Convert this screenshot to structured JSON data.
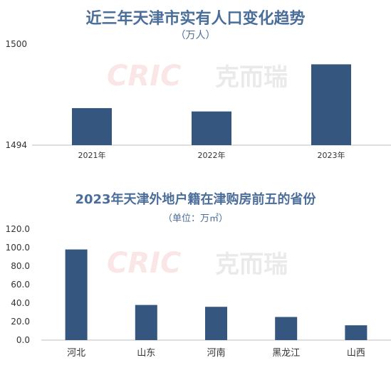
{
  "chart_data": [
    {
      "type": "bar",
      "title": "近三年天津市实有人口变化趋势",
      "subtitle": "（万人）",
      "categories": [
        "2021年",
        "2022年",
        "2023年"
      ],
      "values": [
        1496.2,
        1496.0,
        1498.8
      ],
      "ylim": [
        1494,
        1500
      ],
      "yticks": [
        "1500",
        "1494"
      ],
      "bar_color": "#34567f",
      "grid": false
    },
    {
      "type": "bar",
      "title": "2023年天津外地户籍在津购房前五的省份",
      "subtitle": "（单位：万㎡）",
      "categories": [
        "河北",
        "山东",
        "河南",
        "黑龙江",
        "山西"
      ],
      "values": [
        98,
        38,
        36,
        25,
        16
      ],
      "ylim": [
        0,
        120
      ],
      "yticks": [
        "120.0",
        "100.0",
        "80.0",
        "60.0",
        "40.0",
        "20.0",
        "0.0"
      ],
      "bar_color": "#34567f",
      "grid": false
    }
  ],
  "watermark": {
    "latin": "CRIC",
    "chinese": "克而瑞"
  }
}
